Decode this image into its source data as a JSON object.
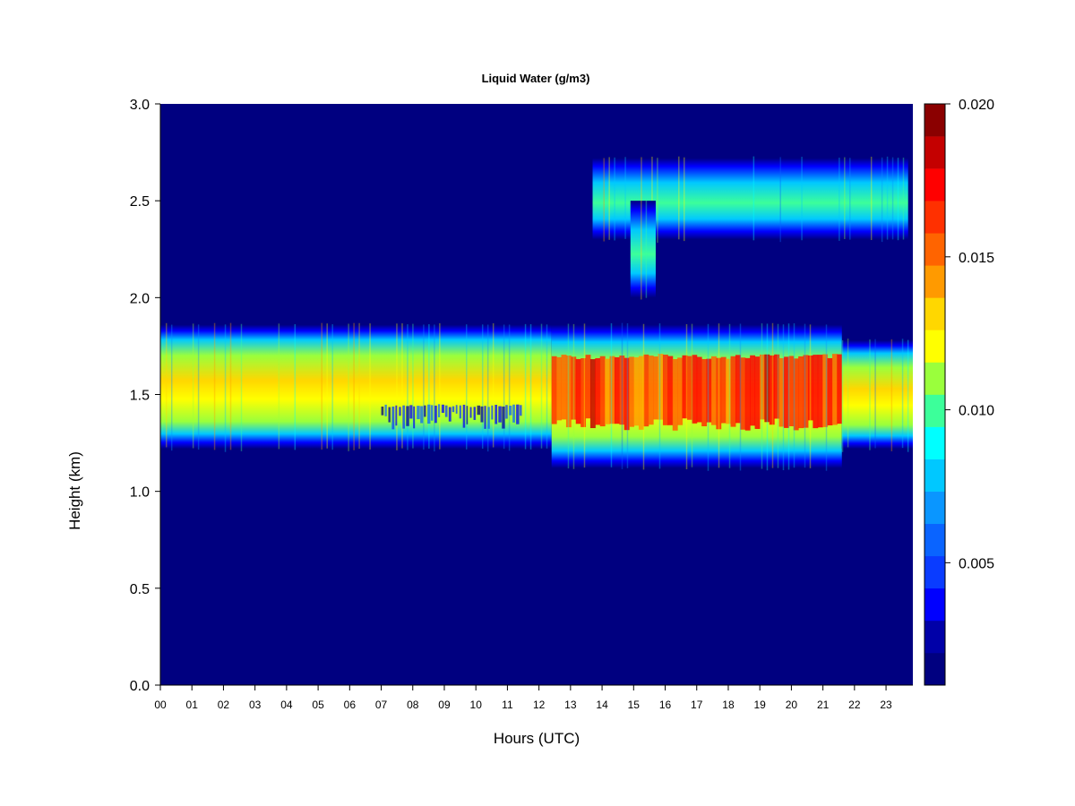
{
  "chart_data": {
    "type": "heatmap",
    "title": "Liquid Water (g/m3)",
    "xlabel": "Hours (UTC)",
    "ylabel": "Height (km)",
    "xlim": [
      0,
      23.85
    ],
    "ylim": [
      0,
      3.0
    ],
    "x_ticks": [
      "00",
      "01",
      "02",
      "03",
      "04",
      "05",
      "06",
      "07",
      "08",
      "09",
      "10",
      "11",
      "12",
      "13",
      "14",
      "15",
      "16",
      "17",
      "18",
      "19",
      "20",
      "21",
      "22",
      "23"
    ],
    "y_ticks": [
      "0.0",
      "0.5",
      "1.0",
      "1.5",
      "2.0",
      "2.5",
      "3.0"
    ],
    "y_tick_values": [
      0,
      0.5,
      1.0,
      1.5,
      2.0,
      2.5,
      3.0
    ],
    "colorbar": {
      "min": 0.001,
      "max": 0.02,
      "tick_labels": [
        "0.005",
        "0.010",
        "0.015",
        "0.020"
      ],
      "tick_values": [
        0.005,
        0.01,
        0.015,
        0.02
      ],
      "colors": [
        "#000080",
        "#0000a8",
        "#0000ff",
        "#0a3cff",
        "#0a64ff",
        "#0a96ff",
        "#00c8ff",
        "#00ffff",
        "#3cff9a",
        "#9aff3c",
        "#ffff00",
        "#ffd700",
        "#ff9a00",
        "#ff6400",
        "#ff3000",
        "#ff0000",
        "#c40000",
        "#8b0000"
      ]
    },
    "features": [
      {
        "name": "lower cloud layer",
        "x": [
          0,
          12.4
        ],
        "y": [
          1.22,
          1.86
        ],
        "peak_height": 1.55,
        "typical_value": 0.012
      },
      {
        "name": "lower cloud layer (thinning)",
        "x": [
          7.0,
          11.5
        ],
        "y": [
          1.3,
          1.45
        ],
        "typical_value": 0.002
      },
      {
        "name": "lower cloud layer (intense)",
        "x": [
          12.4,
          21.6
        ],
        "y": [
          1.12,
          1.86
        ],
        "peak_height": 1.55,
        "typical_value": 0.018
      },
      {
        "name": "lower cloud layer (late)",
        "x": [
          21.6,
          23.85
        ],
        "y": [
          1.22,
          1.78
        ],
        "peak_height": 1.55,
        "typical_value": 0.012
      },
      {
        "name": "upper cloud layer",
        "x": [
          13.7,
          23.7
        ],
        "y": [
          2.3,
          2.72
        ],
        "peak_height": 2.5,
        "typical_value": 0.009
      },
      {
        "name": "upper cloud extension",
        "x": [
          14.9,
          15.7
        ],
        "y": [
          2.0,
          2.5
        ],
        "typical_value": 0.008
      }
    ]
  }
}
